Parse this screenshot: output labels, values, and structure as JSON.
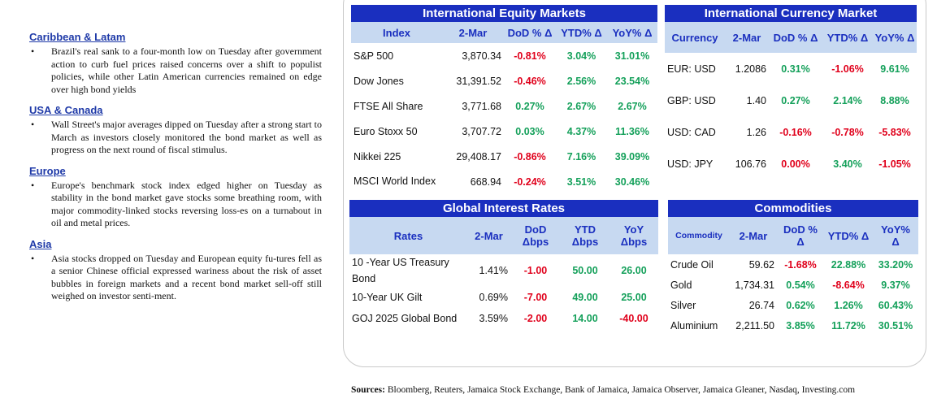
{
  "news": [
    {
      "heading": "Caribbean & Latam",
      "text": "Brazil's real sank to a four-month low on Tuesday after government action to curb fuel prices raised concerns over a shift to populist policies, while other Latin American currencies remained on edge over high bond yields"
    },
    {
      "heading": "USA & Canada",
      "text": "Wall Street's major averages dipped on Tuesday after a strong start to March as investors closely monitored the bond market as well as progress on the next round of fiscal stimulus."
    },
    {
      "heading": "Europe",
      "text": "Europe's benchmark stock index edged higher on Tuesday as stability in the bond market gave stocks some breathing room, with major commodity-linked stocks reversing loss-es on a turnabout in oil and metal prices."
    },
    {
      "heading": "Asia",
      "text": "Asia stocks dropped on Tuesday and European equity fu-tures fell as a senior Chinese official expressed wariness about the risk of asset bubbles in foreign markets and a recent bond market sell-off still weighed on investor senti-ment."
    }
  ],
  "bullet": "•",
  "equity": {
    "title": "International Equity Markets",
    "headers": [
      "Index",
      "2-Mar",
      "DoD % Δ",
      "YTD% Δ",
      "YoY% Δ"
    ],
    "rows": [
      {
        "name": "S&P 500",
        "value": "3,870.34",
        "dod": "-0.81%",
        "ytd": "3.04%",
        "yoy": "31.01%"
      },
      {
        "name": "Dow Jones",
        "value": "31,391.52",
        "dod": "-0.46%",
        "ytd": "2.56%",
        "yoy": "23.54%"
      },
      {
        "name": "FTSE All Share",
        "value": "3,771.68",
        "dod": "0.27%",
        "ytd": "2.67%",
        "yoy": "2.67%"
      },
      {
        "name": "Euro Stoxx 50",
        "value": "3,707.72",
        "dod": "0.03%",
        "ytd": "4.37%",
        "yoy": "11.36%"
      },
      {
        "name": "Nikkei 225",
        "value": "29,408.17",
        "dod": "-0.86%",
        "ytd": "7.16%",
        "yoy": "39.09%"
      },
      {
        "name": "MSCI World Index",
        "value": "668.94",
        "dod": "-0.24%",
        "ytd": "3.51%",
        "yoy": "30.46%"
      }
    ]
  },
  "currency": {
    "title": "International Currency Market",
    "headers": [
      "Currency",
      "2-Mar",
      "DoD % Δ",
      "YTD% Δ",
      "YoY% Δ"
    ],
    "rows": [
      {
        "name": "EUR: USD",
        "value": "1.2086",
        "dod": "0.31%",
        "ytd": "-1.06%",
        "yoy": "9.61%"
      },
      {
        "name": "GBP: USD",
        "value": "1.40",
        "dod": "0.27%",
        "ytd": "2.14%",
        "yoy": "8.88%"
      },
      {
        "name": "USD: CAD",
        "value": "1.26",
        "dod": "-0.16%",
        "ytd": "-0.78%",
        "yoy": "-5.83%"
      },
      {
        "name": "USD: JPY",
        "value": "106.76",
        "dod": "0.00%",
        "ytd": "3.40%",
        "yoy": "-1.05%"
      }
    ]
  },
  "rates": {
    "title": "Global Interest Rates",
    "headers": [
      "Rates",
      "2-Mar",
      "DoD Δbps",
      "YTD Δbps",
      "YoY Δbps"
    ],
    "rows": [
      {
        "name": "10 -Year US Treasury Bond",
        "value": "1.41%",
        "dod": "-1.00",
        "ytd": "50.00",
        "yoy": "26.00"
      },
      {
        "name": "10-Year UK Gilt",
        "value": "0.69%",
        "dod": "-7.00",
        "ytd": "49.00",
        "yoy": "25.00"
      },
      {
        "name": "GOJ 2025 Global Bond",
        "value": "3.59%",
        "dod": "-2.00",
        "ytd": "14.00",
        "yoy": "-40.00"
      }
    ]
  },
  "commodities": {
    "title": "Commodities",
    "headers": [
      "Commodity",
      "2-Mar",
      "DoD % Δ",
      "YTD% Δ",
      "YoY% Δ"
    ],
    "rows": [
      {
        "name": "Crude Oil",
        "value": "59.62",
        "dod": "-1.68%",
        "ytd": "22.88%",
        "yoy": "33.20%"
      },
      {
        "name": "Gold",
        "value": "1,734.31",
        "dod": "0.54%",
        "ytd": "-8.64%",
        "yoy": "9.37%"
      },
      {
        "name": "Silver",
        "value": "26.74",
        "dod": "0.62%",
        "ytd": "1.26%",
        "yoy": "60.43%"
      },
      {
        "name": "Aluminium",
        "value": "2,211.50",
        "dod": "3.85%",
        "ytd": "11.72%",
        "yoy": "30.51%"
      }
    ]
  },
  "sources": {
    "label": "Sources:",
    "text": " Bloomberg, Reuters, Jamaica Stock Exchange, Bank of Jamaica, Jamaica Observer, Jamaica Gleaner, Nasdaq, Investing.com"
  },
  "colors": {
    "header_blue": "#1a2fbf",
    "subheader": "#c7d9f1",
    "positive": "#14a05a",
    "negative": "#e0001b",
    "news_heading": "#1f3aa8"
  }
}
